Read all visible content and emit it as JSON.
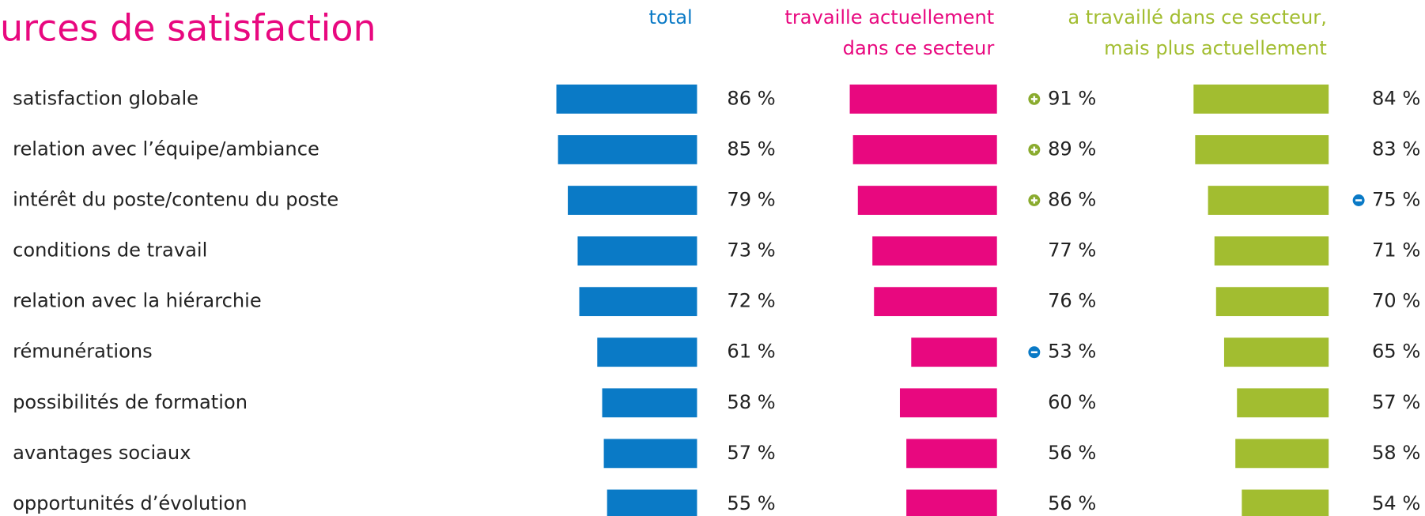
{
  "chart_data": {
    "type": "bar",
    "orientation": "horizontal",
    "title": "urces de satisfaction",
    "categories": [
      "satisfaction globale",
      "relation avec l’équipe/ambiance",
      "intérêt du poste/contenu du poste",
      "conditions de travail",
      "relation avec la hiérarchie",
      "rémunérations",
      "possibilités de formation",
      "avantages sociaux",
      "opportunités d’évolution"
    ],
    "series": [
      {
        "name": [
          "total"
        ],
        "color": "#0a7ac6",
        "values": [
          86,
          85,
          79,
          73,
          72,
          61,
          58,
          57,
          55
        ],
        "value_labels": [
          "86 %",
          "85 %",
          "79 %",
          "73 %",
          "72 %",
          "61 %",
          "58 %",
          "57 %",
          "55 %"
        ],
        "significance": [
          null,
          null,
          null,
          null,
          null,
          null,
          null,
          null,
          null
        ]
      },
      {
        "name": [
          "travaille actuellement",
          "dans ce secteur"
        ],
        "color": "#e8087f",
        "values": [
          91,
          89,
          86,
          77,
          76,
          53,
          60,
          56,
          56
        ],
        "value_labels": [
          "91 %",
          "89 %",
          "86 %",
          "77 %",
          "76 %",
          "53 %",
          "60 %",
          "56 %",
          "56 %"
        ],
        "significance": [
          "+",
          "+",
          "+",
          null,
          null,
          "-",
          null,
          null,
          null
        ]
      },
      {
        "name": [
          "a travaillé dans ce secteur,",
          "mais plus actuellement"
        ],
        "color": "#a2bd30",
        "values": [
          84,
          83,
          75,
          71,
          70,
          65,
          57,
          58,
          54
        ],
        "value_labels": [
          "84 %",
          "83 %",
          "75 %",
          "71 %",
          "70 %",
          "65 %",
          "57 %",
          "58 %",
          "54 %"
        ],
        "significance": [
          null,
          null,
          "-",
          null,
          null,
          null,
          null,
          null,
          null
        ]
      }
    ],
    "significance_colors": {
      "+": "#8aab2e",
      "-": "#0a7ac6"
    }
  }
}
